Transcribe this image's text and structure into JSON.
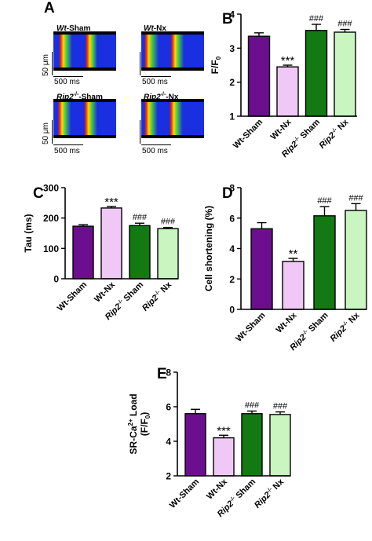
{
  "panel_a": {
    "letter": "A",
    "images": [
      {
        "genotype": "Wt",
        "condition": "-Sham",
        "superscript": ""
      },
      {
        "genotype": "Wt",
        "condition": "-Nx",
        "superscript": ""
      },
      {
        "genotype": "Rip2",
        "condition": "-Sham",
        "superscript": "-/-"
      },
      {
        "genotype": "Rip2",
        "condition": "-Nx",
        "superscript": "-/-"
      }
    ],
    "scale_y": "50 μm",
    "scale_x": "500 ms",
    "colors": {
      "background": "#1a2fe0",
      "peak": "#ff2a00",
      "mid": "#ffd800",
      "low": "#40d040"
    }
  },
  "chart_data": [
    {
      "letter": "B",
      "type": "bar",
      "ylabel": "F/F0",
      "ylim": [
        1,
        4
      ],
      "yticks": [
        1,
        2,
        3,
        4
      ],
      "categories": [
        "Wt-Sham",
        "Wt-Nx",
        "Rip2-/-Sham",
        "Rip2-/-Nx"
      ],
      "values": [
        3.35,
        2.45,
        3.52,
        3.47
      ],
      "errors": [
        0.1,
        0.05,
        0.18,
        0.08
      ],
      "annotations": [
        "",
        "***",
        "###",
        "###"
      ]
    },
    {
      "letter": "C",
      "type": "bar",
      "ylabel": "Tau (ms)",
      "ylim": [
        0,
        300
      ],
      "yticks": [
        0,
        100,
        200,
        300
      ],
      "categories": [
        "Wt-Sham",
        "Wt-Nx",
        "Rip2-/-Sham",
        "Rip2-/-Nx"
      ],
      "values": [
        173,
        233,
        175,
        165
      ],
      "errors": [
        5,
        5,
        8,
        4
      ],
      "annotations": [
        "",
        "***",
        "###",
        "###"
      ]
    },
    {
      "letter": "D",
      "type": "bar",
      "ylabel": "Cell shortening (%)",
      "ylim": [
        0,
        8
      ],
      "yticks": [
        0,
        2,
        4,
        6,
        8
      ],
      "categories": [
        "Wt-Sham",
        "Wt-Nx",
        "Rip2-/-Sham",
        "Rip2-/-Nx"
      ],
      "values": [
        5.3,
        3.15,
        6.15,
        6.5
      ],
      "errors": [
        0.4,
        0.2,
        0.6,
        0.45
      ],
      "annotations": [
        "",
        "**",
        "###",
        "###"
      ]
    },
    {
      "letter": "E",
      "type": "bar",
      "ylabel": "SR-Ca2+ Load (F/F0)",
      "ylim": [
        2,
        8
      ],
      "yticks": [
        2,
        4,
        6,
        8
      ],
      "categories": [
        "Wt-Sham",
        "Wt-Nx",
        "Rip2-/-Sham",
        "Rip2-/-Nx"
      ],
      "values": [
        5.6,
        4.2,
        5.6,
        5.55
      ],
      "errors": [
        0.25,
        0.15,
        0.15,
        0.15
      ],
      "annotations": [
        "",
        "***",
        "###",
        "###"
      ]
    }
  ],
  "bar_colors": [
    "#6b0f8f",
    "#f0c8f5",
    "#137a13",
    "#c8f5c0"
  ]
}
